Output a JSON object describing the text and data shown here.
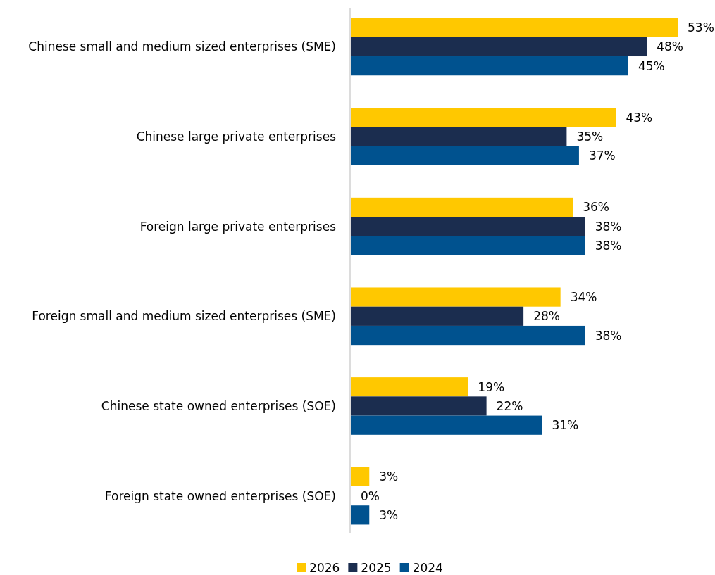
{
  "chart_data": {
    "type": "bar",
    "orientation": "horizontal",
    "categories": [
      "Chinese small and medium sized enterprises (SME)",
      "Chinese large private enterprises",
      "Foreign large private enterprises",
      "Foreign small and medium sized enterprises (SME)",
      "Chinese state owned enterprises (SOE)",
      "Foreign state owned enterprises (SOE)"
    ],
    "series": [
      {
        "name": "2026",
        "color": "#ffc800",
        "values": [
          53,
          43,
          36,
          34,
          19,
          3
        ],
        "value_labels": [
          "53%",
          "43%",
          "36%",
          "34%",
          "19%",
          "3%"
        ]
      },
      {
        "name": "2025",
        "color": "#1b2d4f",
        "values": [
          48,
          35,
          38,
          28,
          22,
          0
        ],
        "value_labels": [
          "48%",
          "35%",
          "38%",
          "28%",
          "22%",
          "0%"
        ]
      },
      {
        "name": "2024",
        "color": "#00528f",
        "values": [
          45,
          37,
          38,
          38,
          31,
          3
        ],
        "value_labels": [
          "45%",
          "37%",
          "38%",
          "38%",
          "31%",
          "3%"
        ]
      }
    ],
    "legend": "bottom",
    "grid": false
  }
}
